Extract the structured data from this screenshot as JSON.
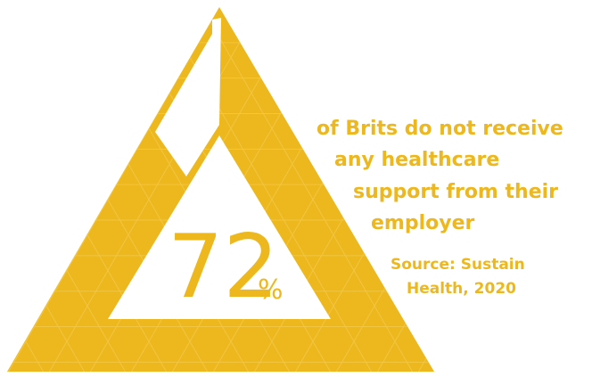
{
  "colors": {
    "accent": "#EDB81E",
    "background": "#FFFFFF"
  },
  "chart_data": {
    "type": "other",
    "value": 72,
    "unit": "%",
    "number_text": "72",
    "percent_text": "%",
    "description_lines": [
      "of Brits do not receive",
      "any healthcare",
      "support from their",
      "employer"
    ],
    "source_lines": [
      "Source: Sustain",
      "Health, 2020"
    ]
  }
}
